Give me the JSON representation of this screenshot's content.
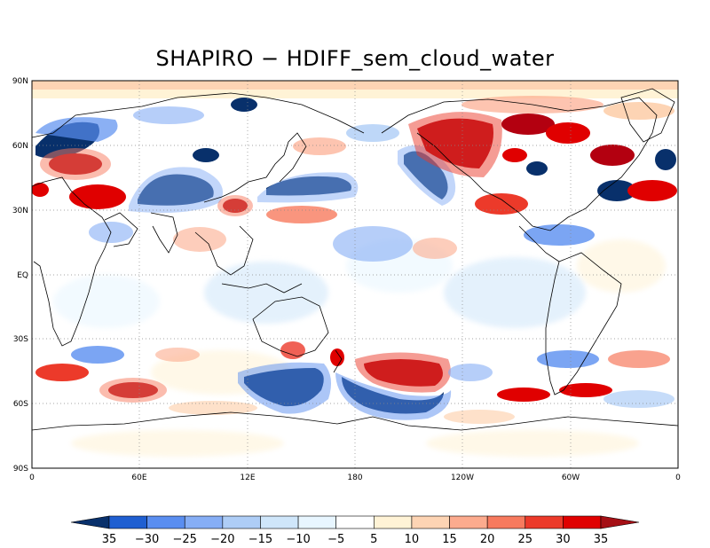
{
  "title": "SHAPIRO − HDIFF_sem_cloud_water",
  "lat_ticks": [
    "90N",
    "60N",
    "30N",
    "EQ",
    "30S",
    "60S",
    "90S"
  ],
  "lon_ticks": [
    "0",
    "60E",
    "12E",
    "180",
    "120W",
    "60W",
    "0"
  ],
  "colorbar": {
    "labels": [
      "35",
      "−30",
      "−25",
      "−20",
      "−15",
      "−10",
      "−5",
      "5",
      "10",
      "15",
      "20",
      "25",
      "30",
      "35"
    ],
    "colors": [
      "#08306b",
      "#1f5fd1",
      "#5a8ef0",
      "#86aef5",
      "#aecdf6",
      "#cfe6fa",
      "#e8f6ff",
      "#ffffff",
      "#fff3d6",
      "#fdd4b4",
      "#fcab8e",
      "#f77a5e",
      "#ec3a2a",
      "#e00000",
      "#a50f15"
    ]
  },
  "colors": {
    "dark_blue": "#08306b",
    "dark_red": "#b30010",
    "coastline": "#000000",
    "grid": "#888888"
  }
}
